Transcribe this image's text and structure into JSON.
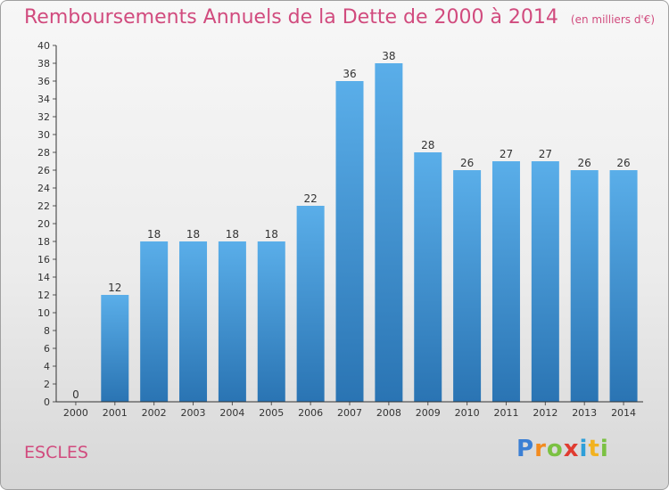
{
  "header": {
    "title": "Remboursements Annuels de la Dette de 2000 à 2014",
    "unit": "(en milliers d'€)"
  },
  "footer": {
    "place": "ESCLES",
    "logo_letters": [
      "P",
      "r",
      "o",
      "x",
      "i",
      "t",
      "i"
    ],
    "logo_colors": [
      "#3b7fd4",
      "#f28b1f",
      "#7bc142",
      "#e03c31",
      "#2e9fd9",
      "#f2b21f",
      "#7bc142"
    ]
  },
  "colors": {
    "title": "#d14b7e",
    "bar_light": "#5aaee9",
    "bar_dark": "#2a74b3",
    "axis": "#333333",
    "grid_tick": "#555555"
  },
  "chart_data": {
    "type": "bar",
    "categories": [
      "2000",
      "2001",
      "2002",
      "2003",
      "2004",
      "2005",
      "2006",
      "2007",
      "2008",
      "2009",
      "2010",
      "2011",
      "2012",
      "2013",
      "2014"
    ],
    "values": [
      0,
      12,
      18,
      18,
      18,
      18,
      22,
      36,
      38,
      28,
      26,
      27,
      27,
      26,
      26
    ],
    "ylim": [
      0,
      40
    ],
    "yticks": [
      0,
      2,
      4,
      6,
      8,
      10,
      12,
      14,
      16,
      18,
      20,
      22,
      24,
      26,
      28,
      30,
      32,
      34,
      36,
      38,
      40
    ],
    "title": "Remboursements Annuels de la Dette de 2000 à 2014",
    "xlabel": "",
    "ylabel": "",
    "grid": false,
    "data_labels": true
  }
}
